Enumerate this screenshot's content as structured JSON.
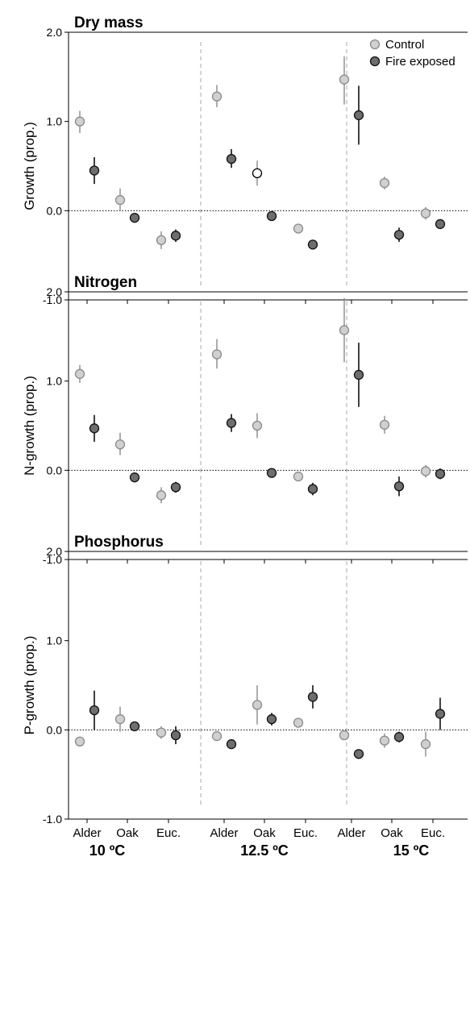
{
  "figure": {
    "categories": [
      "Alder",
      "Oak",
      "Euc.",
      "Alder",
      "Oak",
      "Euc.",
      "Alder",
      "Oak",
      "Euc."
    ],
    "groups": [
      "10 ºC",
      "12.5 ºC",
      "15 ºC"
    ],
    "legend": {
      "position": "top-right"
    },
    "colors": {
      "control_fill": "#d0d0d0",
      "control_stroke": "#8a8a8a",
      "fire_fill": "#6e6e6e",
      "fire_stroke": "#111111",
      "divider": "#aaaaaa"
    }
  },
  "chart_data": [
    {
      "type": "scatter",
      "title": "Dry mass",
      "ylabel": "Growth (prop.)",
      "ylim": [
        -1.0,
        2.0
      ],
      "yticks": [
        "-1.0",
        "0.0",
        "1.0",
        "2.0"
      ],
      "reference_line": 0.0,
      "series": [
        {
          "name": "Control",
          "values": [
            1.0,
            0.12,
            -0.33,
            1.28,
            0.42,
            -0.2,
            1.47,
            0.31,
            -0.03
          ],
          "err_low": [
            0.87,
            0.0,
            -0.43,
            1.16,
            0.28,
            -0.2,
            1.19,
            0.24,
            -0.1
          ],
          "err_high": [
            1.12,
            0.25,
            -0.23,
            1.41,
            0.56,
            -0.2,
            1.73,
            0.38,
            0.04
          ],
          "special_white": [
            4
          ]
        },
        {
          "name": "Fire exposed",
          "values": [
            0.45,
            -0.08,
            -0.28,
            0.58,
            -0.06,
            -0.38,
            1.07,
            -0.27,
            -0.15
          ],
          "err_low": [
            0.3,
            -0.13,
            -0.35,
            0.48,
            -0.06,
            -0.38,
            0.74,
            -0.35,
            -0.15
          ],
          "err_high": [
            0.6,
            -0.03,
            -0.21,
            0.69,
            -0.06,
            -0.38,
            1.4,
            -0.19,
            -0.15
          ]
        }
      ]
    },
    {
      "type": "scatter",
      "title": "Nitrogen",
      "ylabel": "N-growth (prop.)",
      "ylim": [
        -1.0,
        2.0
      ],
      "yticks": [
        "-1.0",
        "0.0",
        "1.0",
        "2.0"
      ],
      "reference_line": 0.0,
      "series": [
        {
          "name": "Control",
          "values": [
            1.08,
            0.29,
            -0.28,
            1.3,
            0.5,
            -0.07,
            1.57,
            0.51,
            -0.01
          ],
          "err_low": [
            0.98,
            0.17,
            -0.37,
            1.14,
            0.36,
            -0.07,
            1.21,
            0.41,
            -0.08
          ],
          "err_high": [
            1.18,
            0.42,
            -0.19,
            1.47,
            0.64,
            -0.07,
            1.93,
            0.61,
            0.06
          ]
        },
        {
          "name": "Fire exposed",
          "values": [
            0.47,
            -0.08,
            -0.19,
            0.53,
            -0.03,
            -0.21,
            1.07,
            -0.18,
            -0.04
          ],
          "err_low": [
            0.32,
            -0.08,
            -0.25,
            0.43,
            -0.03,
            -0.28,
            0.71,
            -0.29,
            -0.1
          ],
          "err_high": [
            0.62,
            -0.08,
            -0.13,
            0.63,
            -0.03,
            -0.14,
            1.43,
            -0.07,
            0.02
          ]
        }
      ]
    },
    {
      "type": "scatter",
      "title": "Phosphorus",
      "ylabel": "P-growth (prop.)",
      "ylim": [
        -1.0,
        2.0
      ],
      "yticks": [
        "-1.0",
        "0.0",
        "1.0",
        "2.0"
      ],
      "reference_line": 0.0,
      "series": [
        {
          "name": "Control",
          "values": [
            -0.13,
            0.12,
            -0.03,
            -0.07,
            0.28,
            0.08,
            -0.06,
            -0.12,
            -0.16
          ],
          "err_low": [
            -0.13,
            -0.02,
            -0.1,
            -0.07,
            0.06,
            0.08,
            -0.06,
            -0.2,
            -0.3
          ],
          "err_high": [
            -0.13,
            0.26,
            0.04,
            -0.07,
            0.5,
            0.08,
            -0.06,
            -0.04,
            -0.02
          ]
        },
        {
          "name": "Fire exposed",
          "values": [
            0.22,
            0.04,
            -0.06,
            -0.16,
            0.12,
            0.37,
            -0.27,
            -0.08,
            0.18
          ],
          "err_low": [
            0.0,
            -0.01,
            -0.16,
            -0.16,
            0.05,
            0.24,
            -0.32,
            -0.14,
            0.0
          ],
          "err_high": [
            0.44,
            0.09,
            0.04,
            -0.16,
            0.19,
            0.5,
            -0.22,
            -0.02,
            0.36
          ]
        }
      ]
    }
  ]
}
